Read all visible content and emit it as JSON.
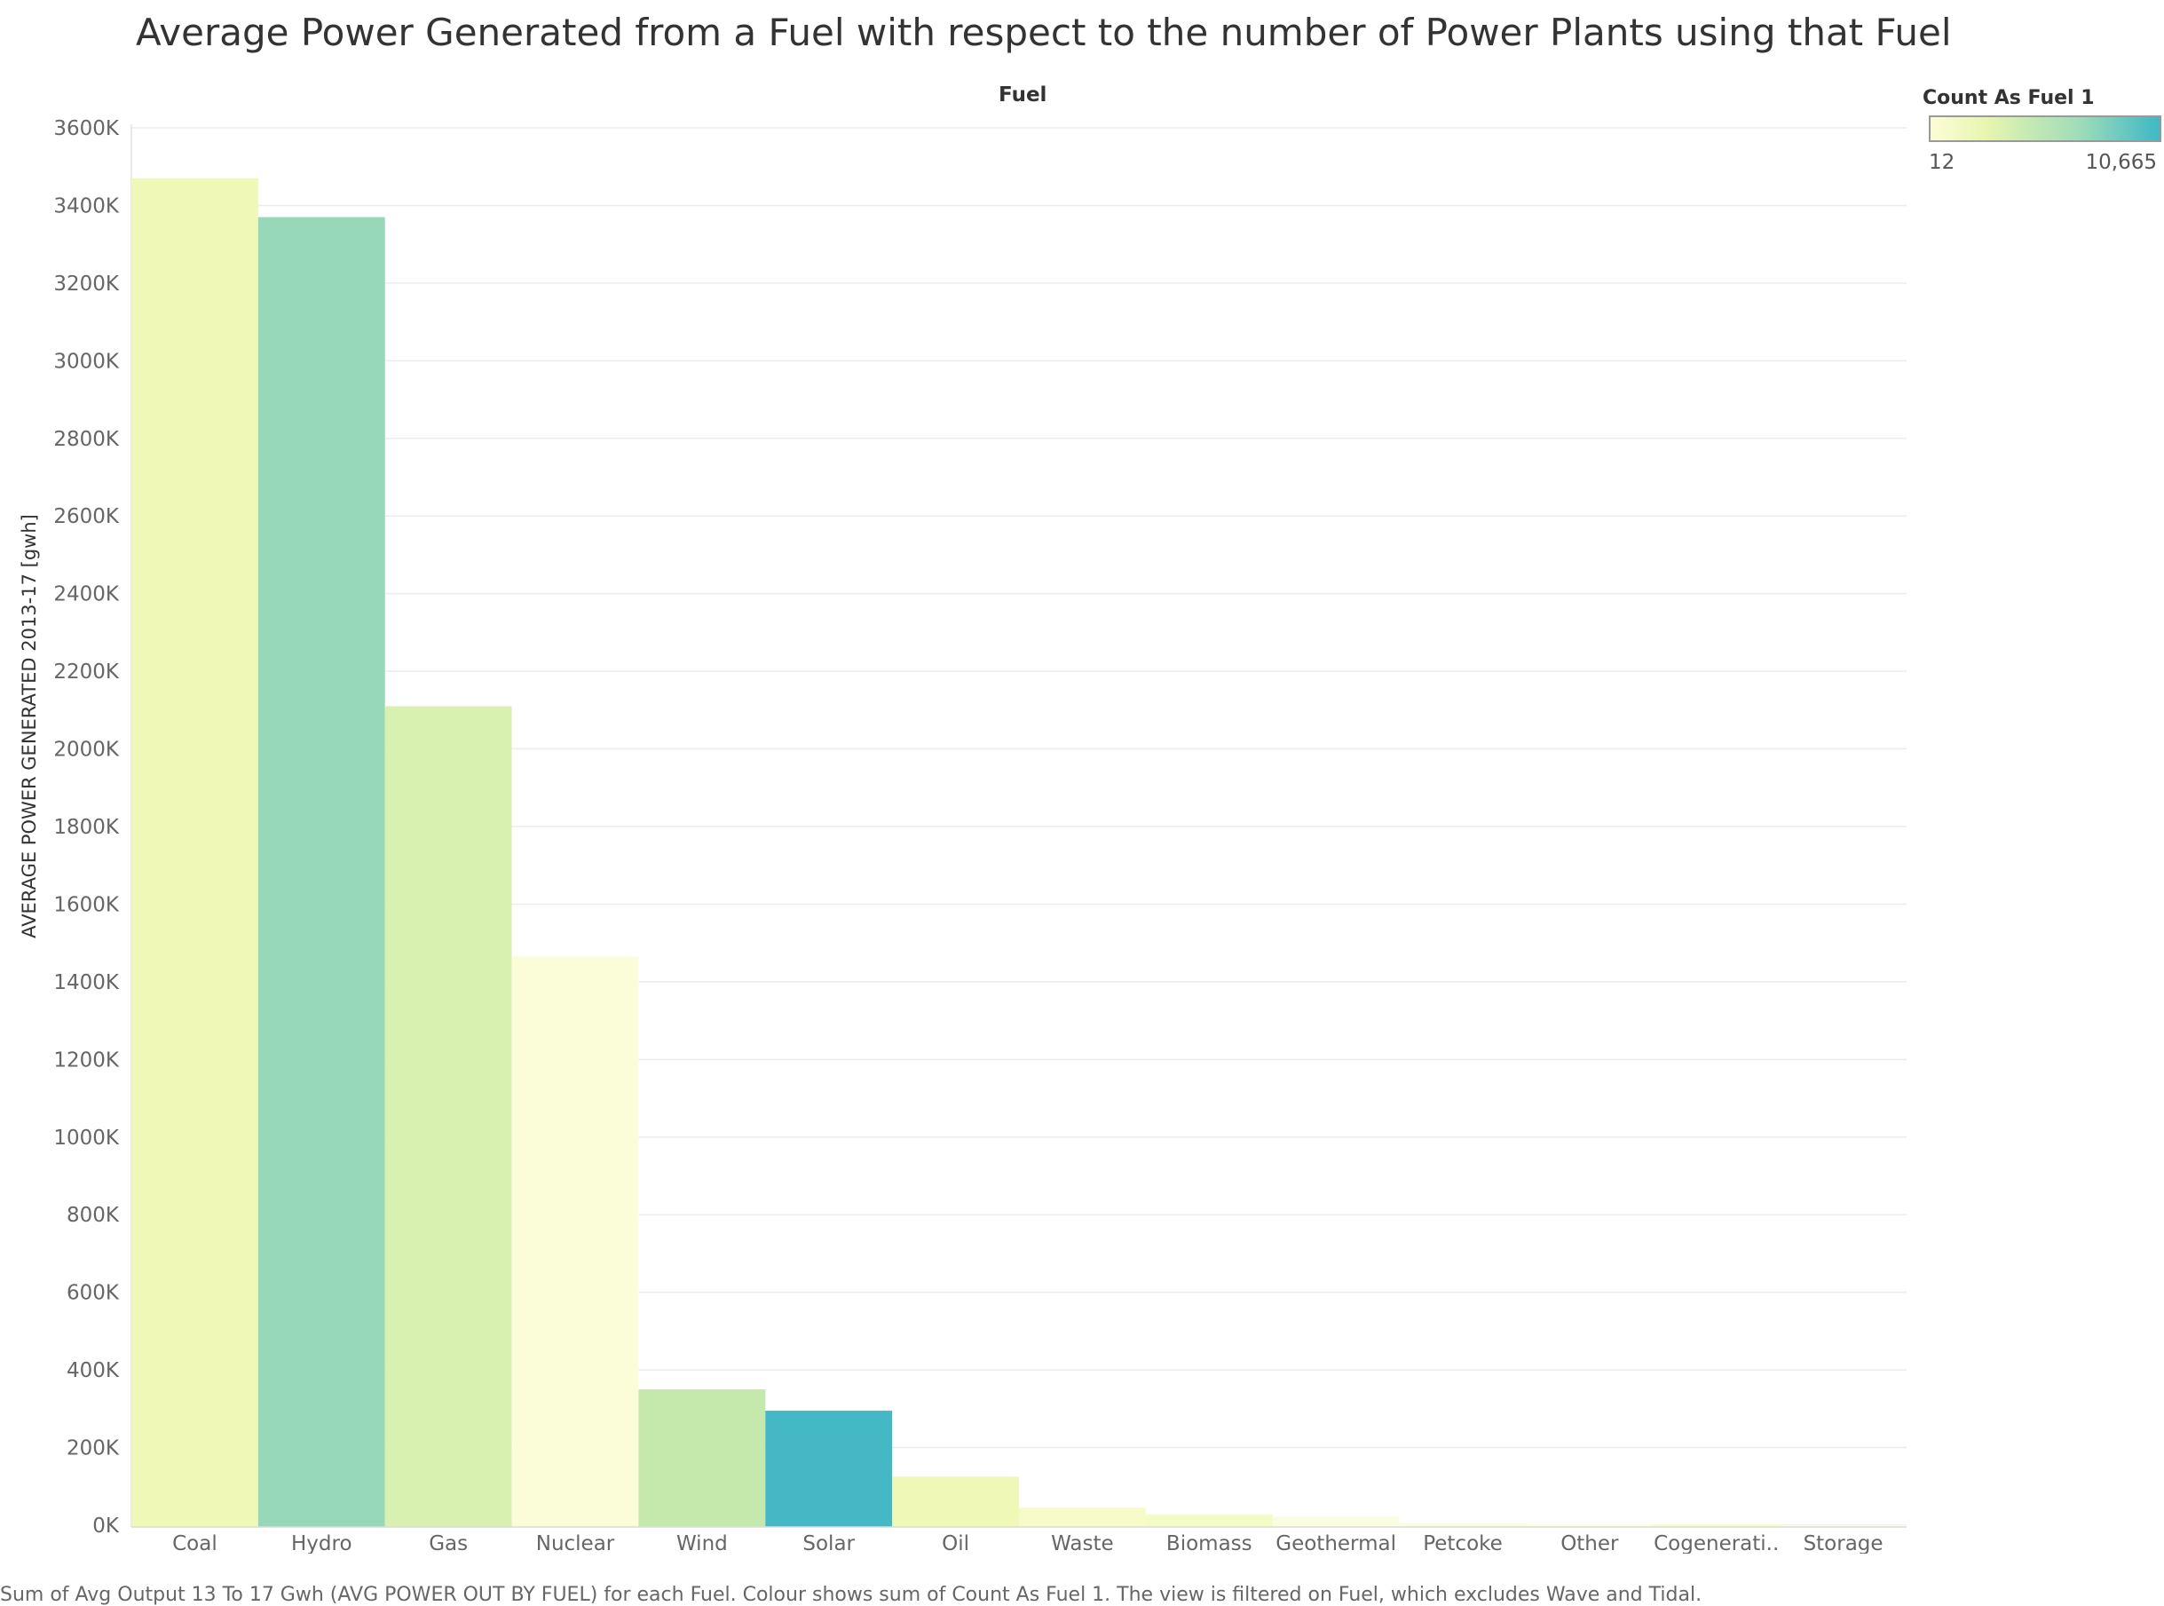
{
  "title": "Average Power Generated from a Fuel with respect to the number of Power Plants using that Fuel",
  "column_header": "Fuel",
  "legend": {
    "title": "Count As Fuel 1",
    "min_label": "12",
    "max_label": "10,665",
    "min": 12,
    "max": 10665,
    "color_low": "#fdfdd6",
    "color_mid": "#9fdcb8",
    "color_high": "#3fb8c6"
  },
  "footnote": "Sum of Avg Output 13 To 17 Gwh (AVG POWER OUT BY FUEL) for each Fuel.  Colour shows sum of Count As Fuel 1. The view is filtered on Fuel, which excludes Wave and Tidal.",
  "chart_data": {
    "type": "bar",
    "ylabel": "AVERAGE POWER GENERATED 2013-17 [gwh]",
    "xlabel": "",
    "categories": [
      "Coal",
      "Hydro",
      "Gas",
      "Nuclear",
      "Wind",
      "Solar",
      "Oil",
      "Waste",
      "Biomass",
      "Geothermal",
      "Petcoke",
      "Other",
      "Cogenerati..",
      "Storage"
    ],
    "values": [
      3470000,
      3370000,
      2110000,
      1465000,
      350000,
      295000,
      125000,
      45000,
      28000,
      22000,
      6000,
      3000,
      2000,
      0
    ],
    "colors": [
      "#eff8b6",
      "#97d8b8",
      "#d8f0b0",
      "#fafdd8",
      "#c5e8ad",
      "#44b8c5",
      "#eff8b6",
      "#f6fbc8",
      "#f5fbc4",
      "#fbfde0",
      "#fbfde0",
      "#fbfde0",
      "#f5fbc4",
      "#fbfde0"
    ],
    "yticks": [
      "0K",
      "200K",
      "400K",
      "600K",
      "800K",
      "1000K",
      "1200K",
      "1400K",
      "1600K",
      "1800K",
      "2000K",
      "2200K",
      "2400K",
      "2600K",
      "2800K",
      "3000K",
      "3200K",
      "3400K",
      "3600K"
    ],
    "ylim": [
      0,
      3600000
    ],
    "grid": true,
    "legend_position": "top-right"
  }
}
